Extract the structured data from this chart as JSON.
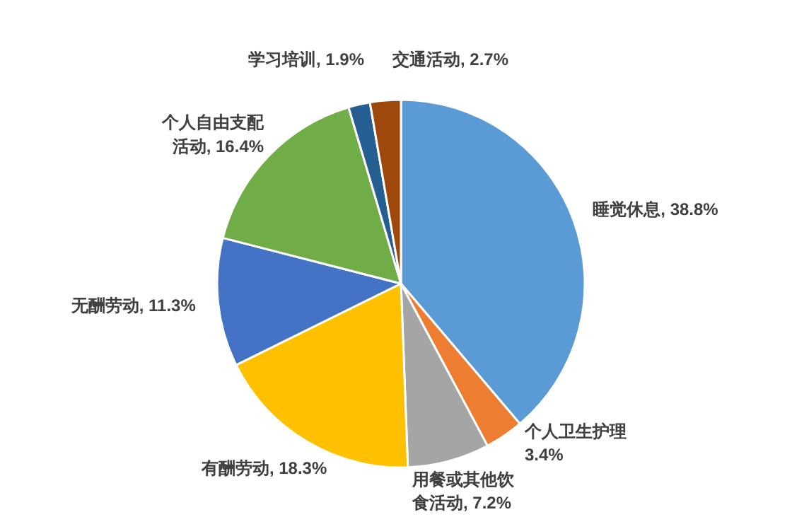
{
  "chart_data": {
    "type": "pie",
    "categories": [
      "睡觉休息",
      "个人卫生护理",
      "用餐或其他饮食活动",
      "有酬劳动",
      "无酬劳动",
      "个人自由支配活动",
      "学习培训",
      "交通活动"
    ],
    "values": [
      38.8,
      3.4,
      7.2,
      18.3,
      11.3,
      16.4,
      1.9,
      2.7
    ],
    "value_labels": [
      "38.8%",
      "3.4%",
      "7.2%",
      "18.3%",
      "11.3%",
      "16.4%",
      "1.9%",
      "2.7%"
    ],
    "colors": [
      "#5b9bd5",
      "#ed7d31",
      "#a5a5a5",
      "#ffc000",
      "#4472c4",
      "#70ad47",
      "#255e91",
      "#9e480e"
    ]
  }
}
